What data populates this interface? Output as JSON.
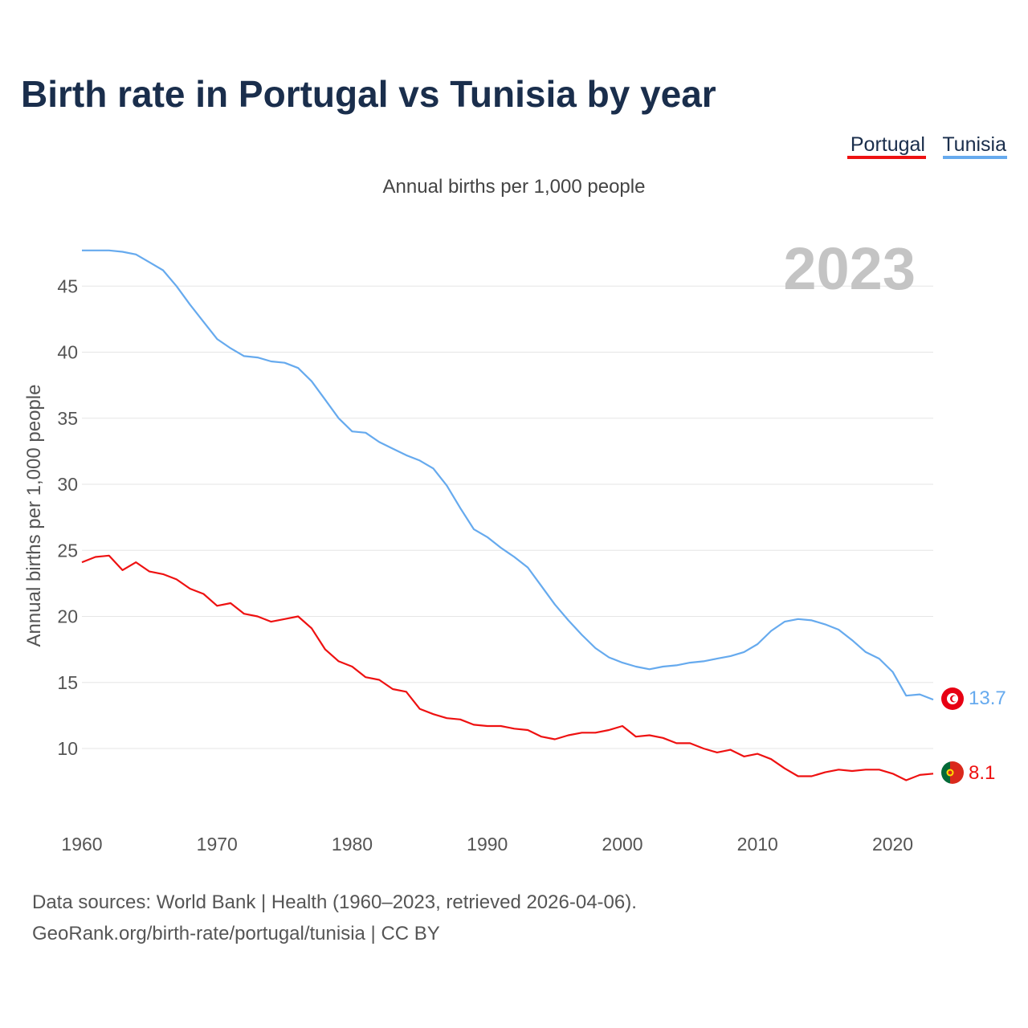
{
  "title": "Birth rate in Portugal vs Tunisia by year",
  "subtitle": "Annual births per 1,000 people",
  "legend": [
    {
      "label": "Portugal",
      "color": "#ee1111"
    },
    {
      "label": "Tunisia",
      "color": "#66aaee"
    }
  ],
  "current_year": "2023",
  "source_line1": "Data sources: World Bank | Health (1960–2023, retrieved 2026-04-06).",
  "source_line2": "GeoRank.org/birth-rate/portugal/tunisia | CC BY",
  "chart_data": {
    "type": "line",
    "title": "Birth rate in Portugal vs Tunisia by year",
    "ylabel": "Annual births per 1,000 people",
    "xlabel": "",
    "xlim": [
      1960,
      2023
    ],
    "ylim": [
      5,
      48
    ],
    "yticks": [
      10,
      15,
      20,
      25,
      30,
      35,
      40,
      45
    ],
    "xticks": [
      1960,
      1970,
      1980,
      1990,
      2000,
      2010,
      2020
    ],
    "grid": true,
    "x": [
      1960,
      1961,
      1962,
      1963,
      1964,
      1965,
      1966,
      1967,
      1968,
      1969,
      1970,
      1971,
      1972,
      1973,
      1974,
      1975,
      1976,
      1977,
      1978,
      1979,
      1980,
      1981,
      1982,
      1983,
      1984,
      1985,
      1986,
      1987,
      1988,
      1989,
      1990,
      1991,
      1992,
      1993,
      1994,
      1995,
      1996,
      1997,
      1998,
      1999,
      2000,
      2001,
      2002,
      2003,
      2004,
      2005,
      2006,
      2007,
      2008,
      2009,
      2010,
      2011,
      2012,
      2013,
      2014,
      2015,
      2016,
      2017,
      2018,
      2019,
      2020,
      2021,
      2022,
      2023
    ],
    "series": [
      {
        "name": "Portugal",
        "color": "#ee1111",
        "end_label": "8.1",
        "values": [
          24.1,
          24.5,
          24.6,
          23.5,
          24.1,
          23.4,
          23.2,
          22.8,
          22.1,
          21.7,
          20.8,
          21.0,
          20.2,
          20.0,
          19.6,
          19.8,
          20.0,
          19.1,
          17.5,
          16.6,
          16.2,
          15.4,
          15.2,
          14.5,
          14.3,
          13.0,
          12.6,
          12.3,
          12.2,
          11.8,
          11.7,
          11.7,
          11.5,
          11.4,
          10.9,
          10.7,
          11.0,
          11.2,
          11.2,
          11.4,
          11.7,
          10.9,
          11.0,
          10.8,
          10.4,
          10.4,
          10.0,
          9.7,
          9.9,
          9.4,
          9.6,
          9.2,
          8.5,
          7.9,
          7.9,
          8.2,
          8.4,
          8.3,
          8.4,
          8.4,
          8.1,
          7.6,
          8.0,
          8.1
        ]
      },
      {
        "name": "Tunisia",
        "color": "#66aaee",
        "end_label": "13.7",
        "values": [
          47.7,
          47.7,
          47.7,
          47.6,
          47.4,
          46.8,
          46.2,
          45.0,
          43.6,
          42.3,
          41.0,
          40.3,
          39.7,
          39.6,
          39.3,
          39.2,
          38.8,
          37.8,
          36.4,
          35.0,
          34.0,
          33.9,
          33.2,
          32.7,
          32.2,
          31.8,
          31.2,
          29.9,
          28.2,
          26.6,
          26.0,
          25.2,
          24.5,
          23.7,
          22.3,
          20.9,
          19.7,
          18.6,
          17.6,
          16.9,
          16.5,
          16.2,
          16.0,
          16.2,
          16.3,
          16.5,
          16.6,
          16.8,
          17.0,
          17.3,
          17.9,
          18.9,
          19.6,
          19.8,
          19.7,
          19.4,
          19.0,
          18.2,
          17.3,
          16.8,
          15.8,
          14.0,
          14.1,
          13.7
        ]
      }
    ]
  }
}
